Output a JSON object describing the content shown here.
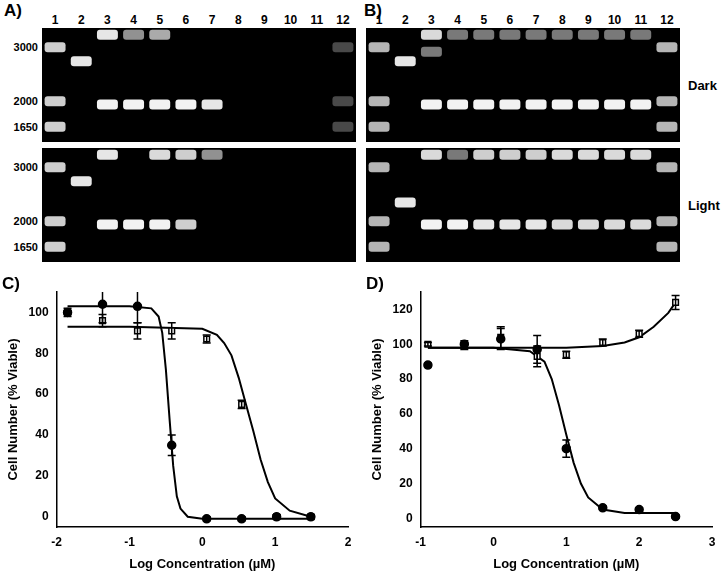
{
  "gels": {
    "row_labels": [
      "Dark",
      "Light"
    ],
    "size_labels": [
      3000,
      2000,
      1650
    ],
    "size_range": [
      1470,
      3470
    ],
    "panels": [
      {
        "label": "A)",
        "lanes": [
          1,
          2,
          3,
          4,
          5,
          6,
          7,
          8,
          9,
          10,
          11,
          12
        ],
        "rows": [
          [
            [
              {
                "bp": 3000,
                "intensity": 0.85
              },
              {
                "bp": 2000,
                "intensity": 0.85
              },
              {
                "bp": 1650,
                "intensity": 0.85
              }
            ],
            [
              {
                "bp": 2700,
                "intensity": 0.95
              }
            ],
            [
              {
                "bp": 3300,
                "intensity": 0.95
              },
              {
                "bp": 1950,
                "intensity": 1.0
              }
            ],
            [
              {
                "bp": 3300,
                "intensity": 0.6
              },
              {
                "bp": 1950,
                "intensity": 1.0
              }
            ],
            [
              {
                "bp": 3300,
                "intensity": 0.7
              },
              {
                "bp": 1950,
                "intensity": 1.0
              }
            ],
            [
              {
                "bp": 1950,
                "intensity": 1.0
              }
            ],
            [
              {
                "bp": 1950,
                "intensity": 0.95
              }
            ],
            [],
            [],
            [],
            [],
            [
              {
                "bp": 3000,
                "intensity": 0.3
              },
              {
                "bp": 2000,
                "intensity": 0.3
              },
              {
                "bp": 1650,
                "intensity": 0.3
              }
            ]
          ],
          [
            [
              {
                "bp": 3000,
                "intensity": 0.85
              },
              {
                "bp": 2000,
                "intensity": 0.85
              },
              {
                "bp": 1650,
                "intensity": 0.85
              }
            ],
            [
              {
                "bp": 2700,
                "intensity": 0.95
              }
            ],
            [
              {
                "bp": 3300,
                "intensity": 0.95
              },
              {
                "bp": 1950,
                "intensity": 1.0
              }
            ],
            [
              {
                "bp": 1950,
                "intensity": 1.0
              }
            ],
            [
              {
                "bp": 3300,
                "intensity": 0.9
              },
              {
                "bp": 1950,
                "intensity": 1.0
              }
            ],
            [
              {
                "bp": 3300,
                "intensity": 0.85
              },
              {
                "bp": 1950,
                "intensity": 0.85
              }
            ],
            [
              {
                "bp": 3300,
                "intensity": 0.6
              }
            ],
            [],
            [],
            [],
            [],
            []
          ]
        ]
      },
      {
        "label": "B)",
        "lanes": [
          1,
          2,
          3,
          4,
          5,
          6,
          7,
          8,
          9,
          10,
          11,
          12
        ],
        "rows": [
          [
            [
              {
                "bp": 3000,
                "intensity": 0.75
              },
              {
                "bp": 2000,
                "intensity": 0.75
              },
              {
                "bp": 1650,
                "intensity": 0.75
              }
            ],
            [
              {
                "bp": 2700,
                "intensity": 0.95
              }
            ],
            [
              {
                "bp": 3300,
                "intensity": 0.9
              },
              {
                "bp": 2900,
                "intensity": 0.5
              },
              {
                "bp": 1950,
                "intensity": 1.0
              }
            ],
            [
              {
                "bp": 3300,
                "intensity": 0.5
              },
              {
                "bp": 1950,
                "intensity": 1.0
              }
            ],
            [
              {
                "bp": 3300,
                "intensity": 0.5
              },
              {
                "bp": 1950,
                "intensity": 1.0
              }
            ],
            [
              {
                "bp": 3300,
                "intensity": 0.5
              },
              {
                "bp": 1950,
                "intensity": 1.0
              }
            ],
            [
              {
                "bp": 3300,
                "intensity": 0.5
              },
              {
                "bp": 1950,
                "intensity": 1.0
              }
            ],
            [
              {
                "bp": 3300,
                "intensity": 0.5
              },
              {
                "bp": 1950,
                "intensity": 1.0
              }
            ],
            [
              {
                "bp": 3300,
                "intensity": 0.5
              },
              {
                "bp": 1950,
                "intensity": 1.0
              }
            ],
            [
              {
                "bp": 3300,
                "intensity": 0.5
              },
              {
                "bp": 1950,
                "intensity": 1.0
              }
            ],
            [
              {
                "bp": 3300,
                "intensity": 0.5
              },
              {
                "bp": 1950,
                "intensity": 1.0
              }
            ],
            [
              {
                "bp": 3000,
                "intensity": 0.75
              },
              {
                "bp": 2000,
                "intensity": 0.75
              },
              {
                "bp": 1650,
                "intensity": 0.75
              }
            ]
          ],
          [
            [
              {
                "bp": 3000,
                "intensity": 0.75
              },
              {
                "bp": 2000,
                "intensity": 0.75
              },
              {
                "bp": 1650,
                "intensity": 0.75
              }
            ],
            [
              {
                "bp": 2300,
                "intensity": 0.95
              }
            ],
            [
              {
                "bp": 3300,
                "intensity": 0.9
              },
              {
                "bp": 1950,
                "intensity": 1.0
              }
            ],
            [
              {
                "bp": 3300,
                "intensity": 0.5
              },
              {
                "bp": 1950,
                "intensity": 1.0
              }
            ],
            [
              {
                "bp": 3300,
                "intensity": 0.85
              },
              {
                "bp": 1950,
                "intensity": 0.95
              }
            ],
            [
              {
                "bp": 3300,
                "intensity": 0.85
              },
              {
                "bp": 1950,
                "intensity": 0.95
              }
            ],
            [
              {
                "bp": 3300,
                "intensity": 0.85
              },
              {
                "bp": 1950,
                "intensity": 0.95
              }
            ],
            [
              {
                "bp": 3300,
                "intensity": 0.9
              },
              {
                "bp": 1950,
                "intensity": 0.9
              }
            ],
            [
              {
                "bp": 3300,
                "intensity": 0.9
              },
              {
                "bp": 1950,
                "intensity": 0.9
              }
            ],
            [
              {
                "bp": 3300,
                "intensity": 0.9
              },
              {
                "bp": 1950,
                "intensity": 0.9
              }
            ],
            [
              {
                "bp": 3300,
                "intensity": 0.9
              },
              {
                "bp": 1950,
                "intensity": 0.9
              }
            ],
            [
              {
                "bp": 3000,
                "intensity": 0.75
              },
              {
                "bp": 2000,
                "intensity": 0.75
              },
              {
                "bp": 1650,
                "intensity": 0.75
              }
            ]
          ]
        ]
      }
    ]
  },
  "chart_data": [
    {
      "label": "C)",
      "type": "scatter",
      "x_label": "Log Concentration (µM)",
      "y_label": "Cell Number (% Viable)",
      "xlim": [
        -2,
        2
      ],
      "xticks": [
        -2,
        -1,
        0,
        1,
        2
      ],
      "ylim": [
        -5,
        110
      ],
      "yticks": [
        0,
        20,
        40,
        60,
        80,
        100
      ],
      "grid": false,
      "series": [
        {
          "marker": "circle",
          "color": "#000000",
          "x": [
            -1.85,
            -1.37,
            -0.89,
            -0.42,
            0.06,
            0.54,
            1.02,
            1.49
          ],
          "values": [
            100,
            104,
            103,
            35,
            -1,
            -1,
            0,
            0
          ],
          "errors": [
            2,
            9,
            8,
            5,
            1,
            1,
            1,
            1
          ]
        },
        {
          "marker": "open_square",
          "color": "#000000",
          "x": [
            -1.85,
            -1.37,
            -0.89,
            -0.42,
            0.06,
            0.54,
            1.02,
            1.49
          ],
          "values": [
            100,
            96,
            91,
            91,
            87,
            55,
            0,
            0
          ],
          "errors": [
            1,
            3,
            4,
            4,
            2,
            2,
            1,
            1
          ]
        },
        {
          "type": "line",
          "color": "#000000",
          "x": [
            -1.85,
            -1.0,
            -0.7,
            -0.6,
            -0.55,
            -0.5,
            -0.45,
            -0.4,
            -0.35,
            -0.3,
            -0.2,
            0,
            1.49
          ],
          "values": [
            103,
            103,
            102,
            98,
            90,
            72,
            48,
            25,
            10,
            4,
            0,
            -1,
            -1
          ]
        },
        {
          "type": "line",
          "color": "#000000",
          "x": [
            -1.85,
            -1,
            0,
            0.2,
            0.3,
            0.4,
            0.5,
            0.6,
            0.7,
            0.8,
            0.9,
            1.0,
            1.2,
            1.49
          ],
          "values": [
            93,
            93,
            92,
            89,
            85,
            79,
            68,
            55,
            42,
            28,
            17,
            9,
            3,
            0
          ]
        }
      ]
    },
    {
      "label": "D)",
      "type": "scatter",
      "x_label": "Log Concentration (µM)",
      "y_label": "Cell Number (% Viable)",
      "xlim": [
        -1,
        3
      ],
      "xticks": [
        -1,
        0,
        1,
        2,
        3
      ],
      "ylim": [
        -5,
        130
      ],
      "yticks": [
        0,
        20,
        40,
        60,
        80,
        100,
        120
      ],
      "grid": false,
      "series": [
        {
          "marker": "circle",
          "color": "#000000",
          "x": [
            -0.9,
            -0.4,
            0.1,
            0.6,
            1.0,
            1.5,
            2.0,
            2.5
          ],
          "values": [
            88,
            100,
            103,
            97,
            40,
            6,
            5,
            1
          ],
          "errors": [
            1,
            2,
            6,
            8,
            5,
            1,
            1,
            1
          ]
        },
        {
          "marker": "open_square",
          "color": "#000000",
          "x": [
            -0.9,
            -0.4,
            0.1,
            0.6,
            1.0,
            1.5,
            2.0,
            2.5
          ],
          "values": [
            100,
            99,
            104,
            93,
            94,
            101,
            106,
            124
          ],
          "errors": [
            1,
            2,
            6,
            6,
            2,
            2,
            2,
            4
          ]
        },
        {
          "type": "line",
          "color": "#000000",
          "x": [
            -0.9,
            0,
            0.5,
            0.7,
            0.8,
            0.9,
            1.0,
            1.1,
            1.2,
            1.3,
            1.5,
            1.8,
            2.5
          ],
          "values": [
            98,
            98,
            96,
            90,
            80,
            65,
            48,
            32,
            20,
            12,
            5,
            3,
            3
          ]
        },
        {
          "type": "line",
          "color": "#000000",
          "x": [
            -0.9,
            0,
            1.0,
            1.5,
            1.8,
            2.0,
            2.2,
            2.4,
            2.5
          ],
          "values": [
            98,
            98,
            98,
            99,
            101,
            104,
            110,
            118,
            124
          ]
        }
      ]
    }
  ]
}
